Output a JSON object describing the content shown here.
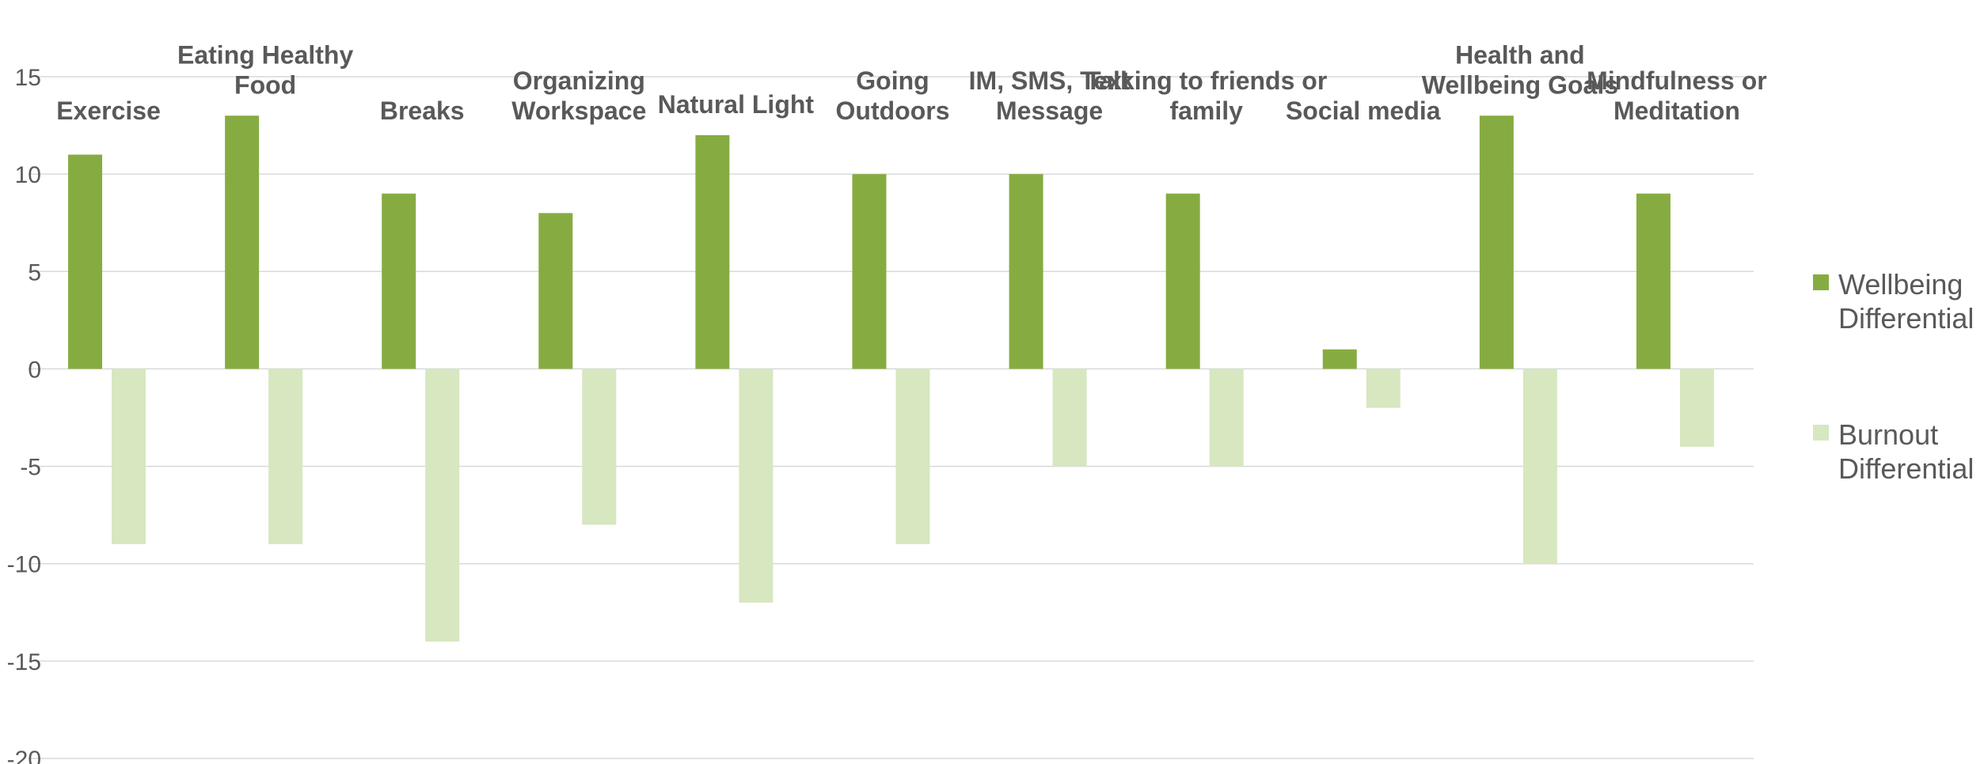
{
  "chart_data": {
    "type": "bar",
    "categories": [
      [
        "Exercise"
      ],
      [
        "Eating Healthy",
        "Food"
      ],
      [
        "Breaks"
      ],
      [
        "Organizing",
        "Workspace"
      ],
      [
        "Natural Light"
      ],
      [
        "Going",
        "Outdoors"
      ],
      [
        "IM, SMS, Text",
        "Message"
      ],
      [
        "Talking to friends or",
        "family"
      ],
      [
        "Social media"
      ],
      [
        "Health and",
        "Wellbeing Goals"
      ],
      [
        "Mindfulness or",
        "Meditation"
      ]
    ],
    "series": [
      {
        "name": [
          "Wellbeing",
          "Differential"
        ],
        "color": "#86AC41",
        "values": [
          11,
          13,
          9,
          8,
          12,
          10,
          10,
          9,
          1,
          13,
          9
        ]
      },
      {
        "name": [
          "Burnout",
          "Differential"
        ],
        "color": "#D7E7C0",
        "values": [
          -9,
          -9,
          -14,
          -8,
          -12,
          -9,
          -5,
          -5,
          -2,
          -10,
          -4
        ]
      }
    ],
    "yticks": [
      "15",
      "10",
      "5",
      "0",
      "-5",
      "-10",
      "-15",
      "-20"
    ],
    "ylim": [
      -20,
      15
    ],
    "grid": true,
    "legend_position": "right"
  }
}
